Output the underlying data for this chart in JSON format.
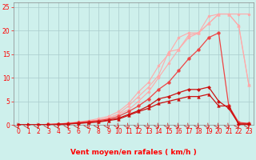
{
  "bg_color": "#cef0ec",
  "grid_color": "#aacccc",
  "xlabel": "Vent moyen/en rafales ( km/h )",
  "xlim": [
    -0.5,
    23.5
  ],
  "ylim": [
    0,
    26
  ],
  "yticks": [
    0,
    5,
    10,
    15,
    20,
    25
  ],
  "xticks": [
    0,
    1,
    2,
    3,
    4,
    5,
    6,
    7,
    8,
    9,
    10,
    11,
    12,
    13,
    14,
    15,
    16,
    17,
    18,
    19,
    20,
    21,
    22,
    23
  ],
  "series": [
    {
      "x": [
        0,
        1,
        2,
        3,
        4,
        5,
        6,
        7,
        8,
        9,
        10,
        11,
        12,
        13,
        14,
        15,
        16,
        17,
        18,
        19,
        20,
        21,
        22,
        23
      ],
      "y": [
        0,
        0,
        0,
        0.1,
        0.2,
        0.3,
        0.5,
        0.8,
        1.0,
        1.5,
        2.2,
        3.2,
        5.0,
        7.0,
        10.0,
        13.0,
        16.0,
        18.5,
        19.5,
        21.5,
        23.5,
        23.5,
        23.5,
        23.5
      ],
      "color": "#ffaaaa",
      "marker": "o",
      "markersize": 2.0,
      "linewidth": 0.8,
      "linestyle": "-"
    },
    {
      "x": [
        0,
        1,
        2,
        3,
        4,
        5,
        6,
        7,
        8,
        9,
        10,
        11,
        12,
        13,
        14,
        15,
        16,
        17,
        18,
        19,
        20,
        21,
        22,
        23
      ],
      "y": [
        0,
        0,
        0,
        0.1,
        0.2,
        0.4,
        0.6,
        0.9,
        1.3,
        1.8,
        2.8,
        4.5,
        7.0,
        9.0,
        12.5,
        15.0,
        18.5,
        19.5,
        19.5,
        23.0,
        23.5,
        23.5,
        21.0,
        8.5
      ],
      "color": "#ffaaaa",
      "marker": "o",
      "markersize": 2.0,
      "linewidth": 0.8,
      "linestyle": "-"
    },
    {
      "x": [
        0,
        1,
        2,
        3,
        4,
        5,
        6,
        7,
        8,
        9,
        10,
        11,
        12,
        13,
        14,
        15,
        16,
        17,
        18,
        19,
        20,
        21,
        22,
        23
      ],
      "y": [
        0,
        0,
        0,
        0.1,
        0.2,
        0.3,
        0.5,
        0.7,
        1.0,
        1.4,
        2.3,
        4.0,
        6.0,
        8.0,
        10.5,
        15.5,
        16.0,
        19.0,
        19.5,
        21.5,
        23.5,
        23.5,
        21.0,
        8.5
      ],
      "color": "#ffaaaa",
      "marker": "^",
      "markersize": 2.5,
      "linewidth": 0.8,
      "linestyle": "-"
    },
    {
      "x": [
        0,
        1,
        2,
        3,
        4,
        5,
        6,
        7,
        8,
        9,
        10,
        11,
        12,
        13,
        14,
        15,
        16,
        17,
        18,
        19,
        20,
        21,
        22,
        23
      ],
      "y": [
        0,
        0,
        0,
        0.1,
        0.15,
        0.3,
        0.5,
        0.7,
        0.9,
        1.2,
        1.8,
        2.8,
        4.0,
        5.5,
        7.5,
        9.0,
        11.5,
        14.0,
        16.0,
        18.5,
        19.5,
        4.0,
        0.5,
        0.3
      ],
      "color": "#ee4444",
      "marker": "o",
      "markersize": 2.5,
      "linewidth": 0.9,
      "linestyle": "-"
    },
    {
      "x": [
        0,
        1,
        2,
        3,
        4,
        5,
        6,
        7,
        8,
        9,
        10,
        11,
        12,
        13,
        14,
        15,
        16,
        17,
        18,
        19,
        20,
        21,
        22,
        23
      ],
      "y": [
        0,
        0,
        0,
        0.05,
        0.1,
        0.2,
        0.35,
        0.5,
        0.7,
        1.0,
        1.4,
        2.2,
        3.0,
        4.0,
        5.5,
        6.0,
        6.8,
        7.5,
        7.5,
        8.0,
        5.0,
        3.5,
        0.2,
        0.2
      ],
      "color": "#cc1111",
      "marker": "D",
      "markersize": 2.0,
      "linewidth": 0.9,
      "linestyle": "-"
    },
    {
      "x": [
        0,
        1,
        2,
        3,
        4,
        5,
        6,
        7,
        8,
        9,
        10,
        11,
        12,
        13,
        14,
        15,
        16,
        17,
        18,
        19,
        20,
        21,
        22,
        23
      ],
      "y": [
        0,
        0,
        0,
        0.05,
        0.1,
        0.18,
        0.3,
        0.45,
        0.6,
        0.9,
        1.2,
        2.0,
        2.8,
        3.5,
        4.5,
        5.0,
        5.5,
        6.0,
        6.0,
        6.5,
        4.0,
        4.0,
        0.1,
        0.1
      ],
      "color": "#cc1111",
      "marker": "^",
      "markersize": 2.5,
      "linewidth": 0.9,
      "linestyle": "-"
    }
  ],
  "axis_fontsize": 6.5,
  "tick_fontsize": 5.5,
  "arrow_color": "#cc0000"
}
